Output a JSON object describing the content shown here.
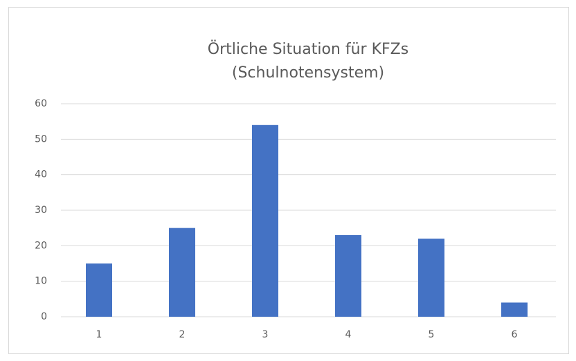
{
  "chart_data": {
    "type": "bar",
    "title": "Örtliche Situation für KFZs",
    "subtitle": "(Schulnotensystem)",
    "categories": [
      "1",
      "2",
      "3",
      "4",
      "5",
      "6"
    ],
    "values": [
      15,
      25,
      54,
      23,
      22,
      4
    ],
    "color": "#4472c4",
    "ylim": [
      0,
      60
    ],
    "yticks": [
      0,
      10,
      20,
      30,
      40,
      50,
      60
    ],
    "grid": true
  }
}
